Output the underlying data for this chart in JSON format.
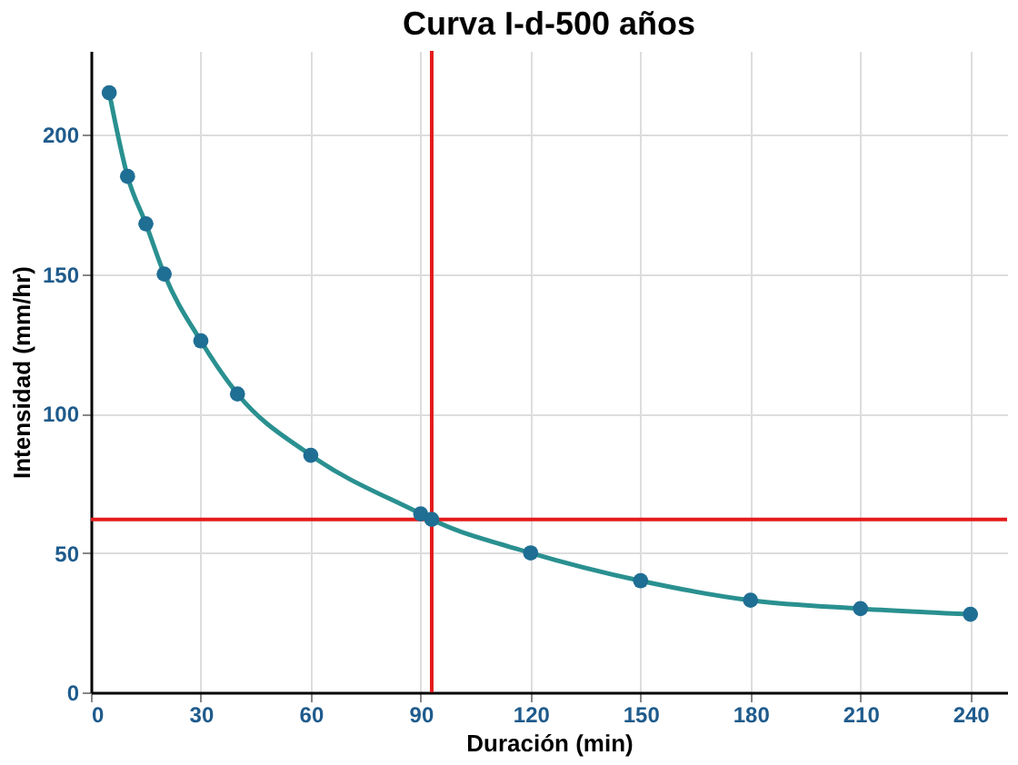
{
  "chart_data": {
    "type": "line",
    "title": "Curva I-d-500 años",
    "xlabel": "Duración (min)",
    "ylabel": "Intensidad (mm/hr)",
    "x": [
      5,
      10,
      15,
      20,
      30,
      40,
      60,
      90,
      93,
      120,
      150,
      180,
      210,
      240
    ],
    "series": [
      {
        "color": "#1f6e94",
        "values": [
          215,
          185,
          168,
          150,
          126,
          107,
          85,
          64,
          62,
          50,
          40,
          33,
          30,
          28
        ]
      }
    ],
    "xlim": [
      0,
      250
    ],
    "xticks": [
      0,
      30,
      60,
      90,
      120,
      150,
      180,
      210,
      240
    ],
    "ylim": [
      0,
      230
    ],
    "yticks": [
      0,
      50,
      100,
      150,
      200
    ],
    "grid": true,
    "marker": "circle",
    "line_style": "solid",
    "ref_lines": [
      {
        "axis": "x",
        "value": 93,
        "color": "#e31b1b"
      },
      {
        "axis": "y",
        "value": 62,
        "color": "#e31b1b"
      }
    ]
  }
}
